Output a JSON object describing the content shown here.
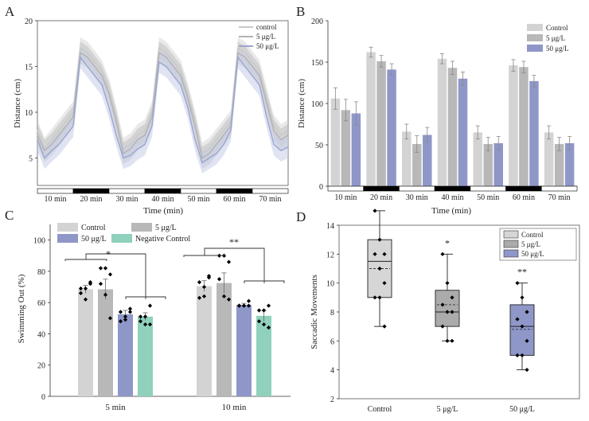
{
  "colors": {
    "control": "#d3d3d3",
    "g5": "#b8b8b8",
    "g50": "#8f97c9",
    "neg": "#8fd1bd",
    "line_control": "#c9c9c9",
    "line_5": "#b2b2b2",
    "line_50": "#9aa5cf",
    "band_50": "#c7cde7"
  },
  "panels": {
    "A": "A",
    "B": "B",
    "C": "C",
    "D": "D"
  },
  "chart_data": [
    {
      "id": "A",
      "type": "line",
      "xlabel": "Time (min)",
      "ylabel": "Distance (cm)",
      "ylim": [
        2,
        20
      ],
      "yticks": [
        "5",
        "10",
        "15",
        "20"
      ],
      "ytick_values": [
        5,
        10,
        15,
        20
      ],
      "time_labels": [
        "10 min",
        "20 min",
        "30 min",
        "40 min",
        "50 min",
        "60 min",
        "70 min"
      ],
      "legend": [
        "control",
        "5 μg/L",
        "50 μg/L"
      ],
      "x": [
        0,
        2,
        4,
        6,
        8,
        10,
        12,
        14,
        16,
        18,
        20,
        22,
        24,
        26,
        28,
        30,
        32,
        34,
        36,
        38,
        40,
        42,
        44,
        46,
        48,
        50,
        52,
        54,
        56,
        58,
        60,
        62,
        64,
        66,
        68,
        70
      ],
      "series": [
        {
          "name": "control",
          "values": [
            8,
            6,
            7,
            8,
            9,
            10,
            17,
            16.5,
            15.5,
            14.5,
            12.5,
            9.5,
            6,
            6.5,
            7.5,
            8,
            10,
            17,
            16.5,
            15.5,
            14.5,
            12,
            9,
            5.5,
            6,
            7,
            8,
            9,
            17,
            16.5,
            15.5,
            14.5,
            11.5,
            8.5,
            7.5,
            8
          ]
        },
        {
          "name": "5 μg/L",
          "values": [
            7.5,
            5.8,
            6.5,
            7.5,
            8.5,
            9.5,
            16.5,
            16,
            15,
            14,
            12,
            9,
            5.5,
            6,
            7,
            7.5,
            9.5,
            16.5,
            16,
            15,
            14,
            11.5,
            8.5,
            5,
            5.5,
            6.5,
            7.5,
            8.5,
            16.5,
            16,
            15,
            14,
            11,
            8,
            7,
            7.5
          ]
        },
        {
          "name": "50 μg/L",
          "values": [
            7,
            5,
            5.8,
            6.5,
            7.5,
            8.5,
            16,
            15,
            14,
            13,
            10.5,
            7.5,
            5,
            5.3,
            6,
            6.5,
            8.5,
            15.5,
            15,
            14,
            13,
            10.5,
            7,
            4.5,
            5,
            5.5,
            6.5,
            8,
            16,
            15,
            14,
            13,
            9.5,
            6.5,
            5.8,
            6.2
          ]
        }
      ]
    },
    {
      "id": "B",
      "type": "bar",
      "xlabel": "Time (min)",
      "ylabel": "Distance (cm)",
      "ylim": [
        0,
        200
      ],
      "yticks": [
        "0",
        "50",
        "100",
        "150",
        "200"
      ],
      "ytick_values": [
        0,
        50,
        100,
        150,
        200
      ],
      "categories": [
        "10 min",
        "20 min",
        "30 min",
        "40 min",
        "50 min",
        "60 min",
        "70 min"
      ],
      "legend": [
        "Control",
        "5 μg/L",
        "50 μg/L"
      ],
      "series": [
        {
          "name": "Control",
          "values": [
            106,
            162,
            66,
            154,
            65,
            146,
            65
          ],
          "errors": [
            13,
            6,
            9,
            6,
            8,
            7,
            8
          ]
        },
        {
          "name": "5 μg/L",
          "values": [
            92,
            151,
            51,
            143,
            51,
            144,
            51
          ],
          "errors": [
            13,
            7,
            10,
            8,
            8,
            7,
            8
          ]
        },
        {
          "name": "50 μg/L",
          "values": [
            88,
            141,
            62,
            130,
            52,
            127,
            52
          ],
          "errors": [
            14,
            7,
            9,
            8,
            8,
            7,
            8
          ]
        }
      ]
    },
    {
      "id": "C",
      "type": "bar",
      "ylabel": "Swimming Out (%)",
      "ylim": [
        0,
        110
      ],
      "yticks": [
        "0",
        "20",
        "40",
        "60",
        "80",
        "100"
      ],
      "ytick_values": [
        0,
        20,
        40,
        60,
        80,
        100
      ],
      "categories": [
        "5 min",
        "10 min"
      ],
      "legend": [
        "Control",
        "5 μg/L",
        "50 μg/L",
        "Negative Control"
      ],
      "sig_labels": [
        "*",
        "**"
      ],
      "series": [
        {
          "name": "Control",
          "values": [
            68.5,
            70.5
          ],
          "errors": [
            2.5,
            3.5
          ],
          "points": [
            [
              69,
              69,
              72,
              66,
              62,
              73
            ],
            [
              73,
              70,
              76,
              63,
              64,
              77
            ]
          ]
        },
        {
          "name": "5 μg/L",
          "values": [
            68.5,
            72.5
          ],
          "errors": [
            6.5,
            6.5
          ],
          "points": [
            [
              82,
              82,
              78,
              72,
              65,
              50
            ],
            [
              90,
              90,
              86,
              75,
              64,
              62
            ]
          ]
        },
        {
          "name": "50 μg/L",
          "values": [
            52.5,
            58.5
          ],
          "errors": [
            2.5,
            1
          ],
          "points": [
            [
              54,
              51,
              54,
              48,
              49,
              56
            ],
            [
              58,
              58,
              58,
              58,
              58,
              61
            ]
          ]
        },
        {
          "name": "Negative Control",
          "values": [
            51,
            51.5
          ],
          "errors": [
            2.5,
            3.5
          ],
          "points": [
            [
              51,
              51,
              58,
              48,
              46,
              46
            ],
            [
              55,
              55,
              58,
              48,
              46,
              44
            ]
          ]
        }
      ]
    },
    {
      "id": "D",
      "type": "box",
      "ylabel": "Saccadic Movements",
      "ylim": [
        2,
        14
      ],
      "yticks": [
        "2",
        "4",
        "6",
        "8",
        "10",
        "12",
        "14"
      ],
      "ytick_values": [
        2,
        4,
        6,
        8,
        10,
        12,
        14
      ],
      "categories": [
        "Control",
        "5 μg/L",
        "50 μg/L"
      ],
      "legend": [
        "Control",
        "5 μg/L",
        "50 μg/L"
      ],
      "sig_labels": [
        "",
        "*",
        "**"
      ],
      "boxes": [
        {
          "name": "Control",
          "min": 7,
          "q1": 9,
          "median": 11.5,
          "mean": 11,
          "q3": 13,
          "max": 15,
          "points": [
            15,
            13,
            12,
            12,
            11,
            10,
            9,
            9,
            7
          ]
        },
        {
          "name": "5 μg/L",
          "min": 6,
          "q1": 7,
          "median": 8,
          "mean": 8.5,
          "q3": 9.5,
          "max": 12,
          "points": [
            12,
            10,
            9,
            8.5,
            8,
            8,
            7,
            6,
            6
          ]
        },
        {
          "name": "50 μg/L",
          "min": 4,
          "q1": 5,
          "median": 7,
          "mean": 6.8,
          "q3": 8.5,
          "max": 10,
          "points": [
            10,
            9,
            8,
            7.5,
            7,
            6,
            5,
            5,
            4
          ]
        }
      ]
    }
  ]
}
